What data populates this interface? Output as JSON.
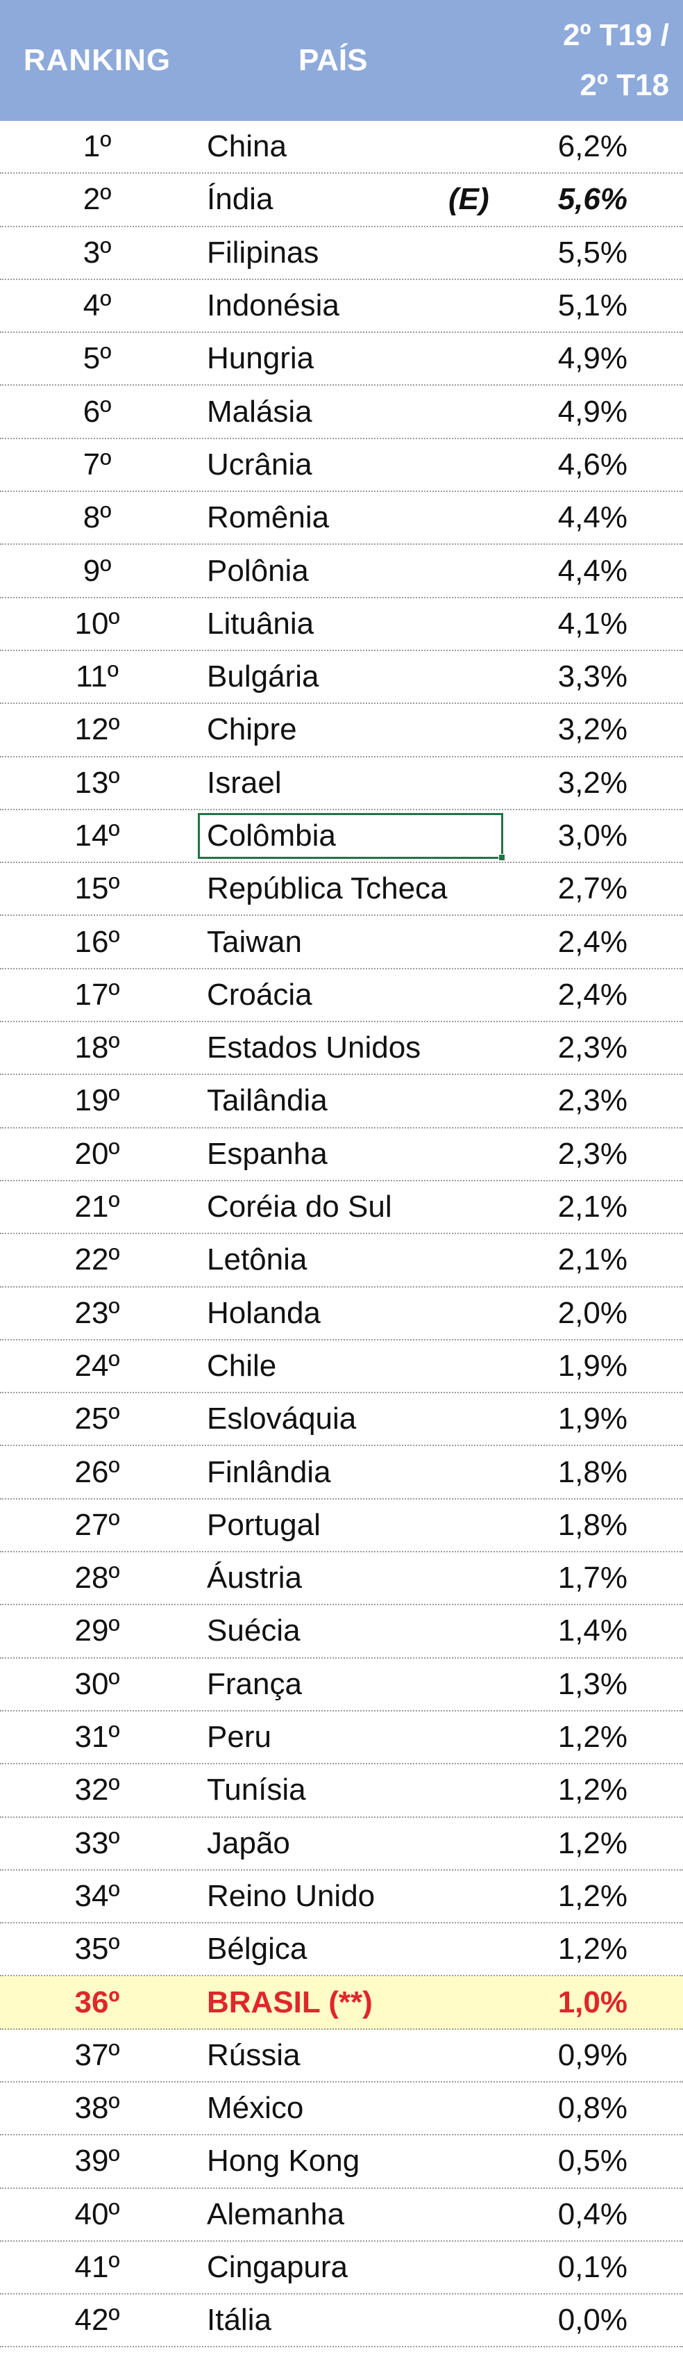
{
  "header": {
    "ranking": "RANKING",
    "country": "PAÍS",
    "period_line1": "2º T19 /",
    "period_line2": "2º T18"
  },
  "colors": {
    "header_bg": "#8eaadb",
    "highlight_bg": "#fffcc8",
    "highlight_text": "#e0262a",
    "selection_border": "#217346"
  },
  "rows": [
    {
      "rank": "1º",
      "country": "China",
      "value": "6,2%"
    },
    {
      "rank": "2º",
      "country": "Índia",
      "note": "(E)",
      "value": "5,6%"
    },
    {
      "rank": "3º",
      "country": "Filipinas",
      "value": "5,5%"
    },
    {
      "rank": "4º",
      "country": "Indonésia",
      "value": "5,1%"
    },
    {
      "rank": "5º",
      "country": "Hungria",
      "value": "4,9%"
    },
    {
      "rank": "6º",
      "country": "Malásia",
      "value": "4,9%"
    },
    {
      "rank": "7º",
      "country": "Ucrânia",
      "value": "4,6%"
    },
    {
      "rank": "8º",
      "country": "Romênia",
      "value": "4,4%"
    },
    {
      "rank": "9º",
      "country": "Polônia",
      "value": "4,4%"
    },
    {
      "rank": "10º",
      "country": "Lituânia",
      "value": "4,1%"
    },
    {
      "rank": "11º",
      "country": "Bulgária",
      "value": "3,3%"
    },
    {
      "rank": "12º",
      "country": "Chipre",
      "value": "3,2%"
    },
    {
      "rank": "13º",
      "country": "Israel",
      "value": "3,2%"
    },
    {
      "rank": "14º",
      "country": "Colômbia",
      "value": "3,0%"
    },
    {
      "rank": "15º",
      "country": "República Tcheca",
      "value": "2,7%"
    },
    {
      "rank": "16º",
      "country": "Taiwan",
      "value": "2,4%"
    },
    {
      "rank": "17º",
      "country": "Croácia",
      "value": "2,4%"
    },
    {
      "rank": "18º",
      "country": "Estados Unidos",
      "value": "2,3%"
    },
    {
      "rank": "19º",
      "country": "Tailândia",
      "value": "2,3%"
    },
    {
      "rank": "20º",
      "country": "Espanha",
      "value": "2,3%"
    },
    {
      "rank": "21º",
      "country": "Coréia do Sul",
      "value": "2,1%"
    },
    {
      "rank": "22º",
      "country": "Letônia",
      "value": "2,1%"
    },
    {
      "rank": "23º",
      "country": "Holanda",
      "value": "2,0%"
    },
    {
      "rank": "24º",
      "country": "Chile",
      "value": "1,9%"
    },
    {
      "rank": "25º",
      "country": "Eslováquia",
      "value": "1,9%"
    },
    {
      "rank": "26º",
      "country": "Finlândia",
      "value": "1,8%"
    },
    {
      "rank": "27º",
      "country": "Portugal",
      "value": "1,8%"
    },
    {
      "rank": "28º",
      "country": "Áustria",
      "value": "1,7%"
    },
    {
      "rank": "29º",
      "country": "Suécia",
      "value": "1,4%"
    },
    {
      "rank": "30º",
      "country": "França",
      "value": "1,3%"
    },
    {
      "rank": "31º",
      "country": "Peru",
      "value": "1,2%"
    },
    {
      "rank": "32º",
      "country": "Tunísia",
      "value": "1,2%"
    },
    {
      "rank": "33º",
      "country": "Japão",
      "value": "1,2%"
    },
    {
      "rank": "34º",
      "country": "Reino Unido",
      "value": "1,2%"
    },
    {
      "rank": "35º",
      "country": "Bélgica",
      "value": "1,2%"
    },
    {
      "rank": "36º",
      "country": "BRASIL (**)",
      "value": "1,0%"
    },
    {
      "rank": "37º",
      "country": "Rússia",
      "value": "0,9%"
    },
    {
      "rank": "38º",
      "country": "México",
      "value": "0,8%"
    },
    {
      "rank": "39º",
      "country": "Hong Kong",
      "value": "0,5%"
    },
    {
      "rank": "40º",
      "country": "Alemanha",
      "value": "0,4%"
    },
    {
      "rank": "41º",
      "country": "Cingapura",
      "value": "0,1%"
    },
    {
      "rank": "42º",
      "country": "Itália",
      "value": "0,0%"
    }
  ]
}
